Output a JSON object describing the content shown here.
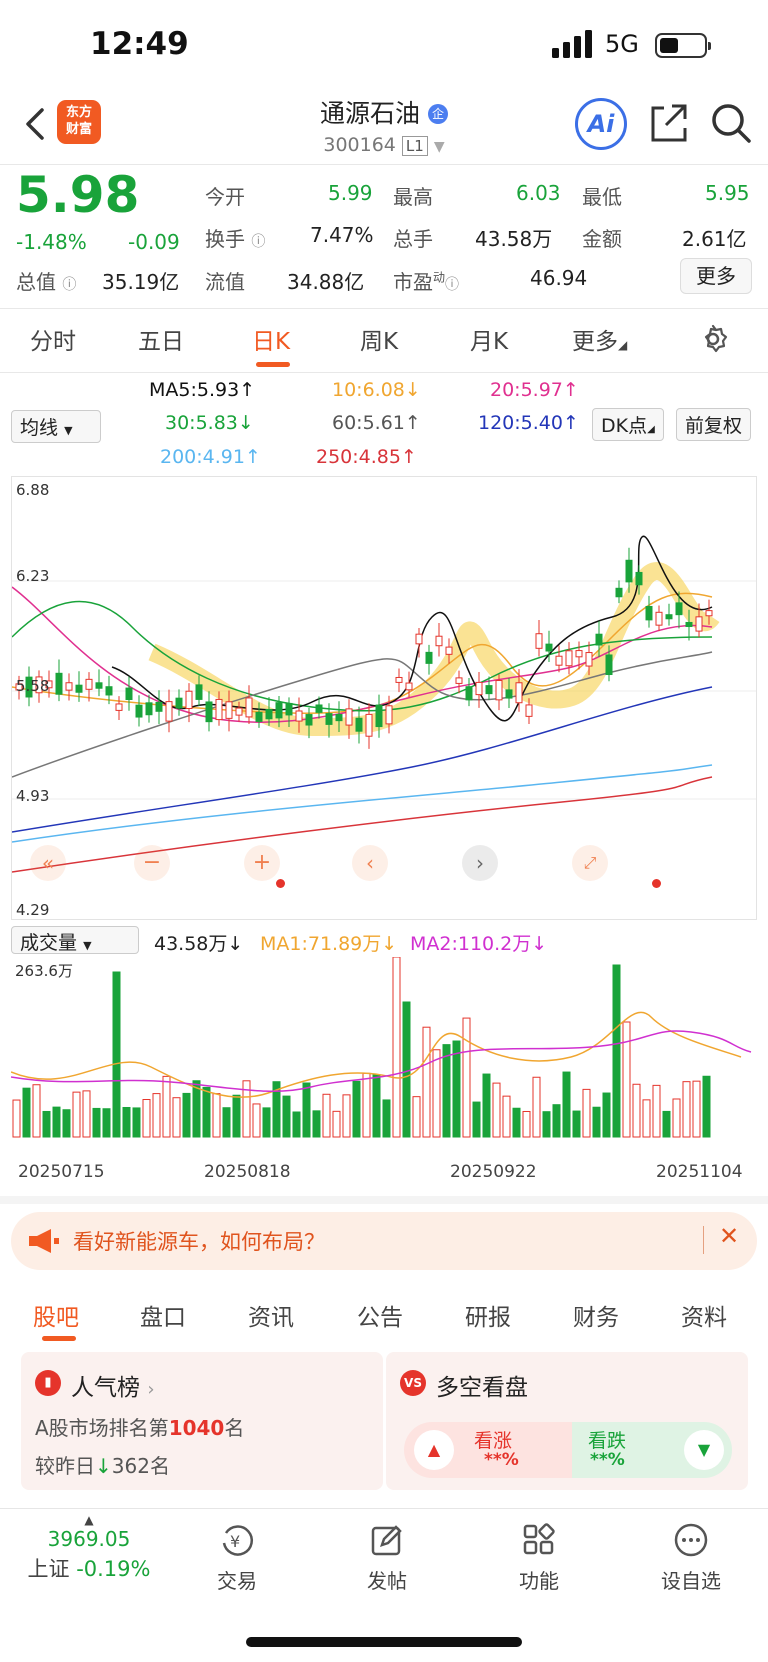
{
  "status": {
    "time": "12:49",
    "network": "5G"
  },
  "header": {
    "name": "通源石油",
    "badge": "企",
    "code": "300164",
    "level": "L1",
    "logo_line1": "东方",
    "logo_line2": "财富",
    "ai": "Ai"
  },
  "quote": {
    "price": "5.98",
    "change_pct": "-1.48%",
    "change": "-0.09",
    "rows": [
      [
        {
          "k": "今开",
          "v": "5.99",
          "c": "green"
        },
        {
          "k": "最高",
          "v": "6.03",
          "c": "green"
        },
        {
          "k": "最低",
          "v": "5.95",
          "c": "green"
        }
      ],
      [
        {
          "k": "换手",
          "v": "7.47%",
          "c": "dark"
        },
        {
          "k": "总手",
          "v": "43.58万",
          "c": "dark"
        },
        {
          "k": "金额",
          "v": "2.61亿",
          "c": "dark"
        }
      ]
    ],
    "total_value_label": "总值",
    "total_value": "35.19亿",
    "float_label": "流值",
    "float_value": "34.88亿",
    "pe_label": "市盈",
    "pe_sup": "动",
    "pe_value": "46.94",
    "more": "更多"
  },
  "tabs": [
    "分时",
    "五日",
    "日K",
    "周K",
    "月K",
    "更多"
  ],
  "ma": {
    "selector": "均线",
    "ma5": "MA5:5.93",
    "ma10": "10:6.08",
    "ma20": "20:5.97",
    "ma30": "30:5.83",
    "ma60": "60:5.61",
    "ma120": "120:5.40",
    "ma200": "200:4.91",
    "ma250": "250:4.85",
    "dk": "DK点",
    "fq": "前复权"
  },
  "colors": {
    "up": "#e5342b",
    "down": "#19a33a",
    "accent": "#f15a22"
  },
  "chart_data": {
    "type": "candlestick",
    "y_ticks": [
      "6.88",
      "6.23",
      "5.58",
      "4.93",
      "4.29"
    ],
    "ylim": [
      4.29,
      6.88
    ],
    "x_ticks": [
      "20250715",
      "20250818",
      "20250922",
      "20251104"
    ]
  },
  "volume": {
    "selector": "成交量",
    "value": "43.58万",
    "ma1": "MA1:71.89万",
    "ma2": "MA2:110.2万",
    "max": "263.6万"
  },
  "banner": {
    "text": "看好新能源车，如何布局？"
  },
  "bottom_tabs": [
    "股吧",
    "盘口",
    "资讯",
    "公告",
    "研报",
    "财务",
    "资料"
  ],
  "cards": {
    "rank_title": "人气榜",
    "rank_line1a": "A股市场排名第",
    "rank_num": "1040",
    "rank_line1b": "名",
    "rank_line2a": "较昨日",
    "rank_change": "362",
    "rank_line2b": "名",
    "vs_title": "多空看盘",
    "bull": "看涨",
    "bear": "看跌",
    "bull_val": "**%",
    "bear_val": "**%"
  },
  "nav": {
    "index_value": "3969.05",
    "index_name": "上证",
    "index_change": "-0.19%",
    "items": [
      "交易",
      "发帖",
      "功能",
      "设自选"
    ]
  }
}
